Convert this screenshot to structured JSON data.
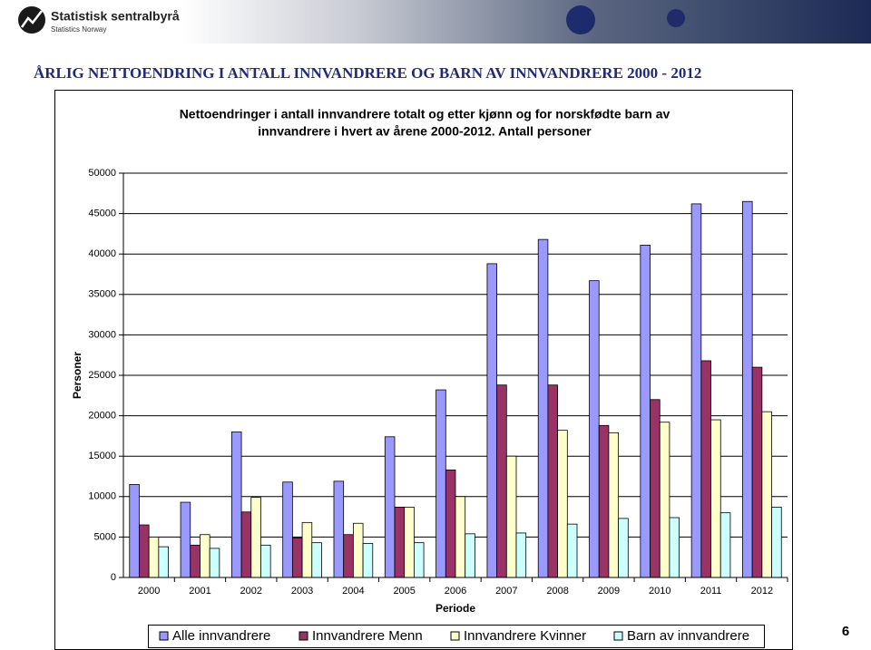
{
  "header": {
    "org_name": "Statistisk sentralbyrå",
    "org_name_en": "Statistics Norway"
  },
  "slide_title": "ÅRLIG NETTOENDRING I ANTALL  INNVANDRERE OG BARN AV INNVANDRERE 2000 - 2012",
  "page_number": "6",
  "chart_data": {
    "type": "bar",
    "title": [
      "Nettoendringer i antall innvandrere totalt og etter kjønn og for norskfødte barn av",
      "innvandrere i hvert av årene  2000-2012. Antall personer"
    ],
    "x_label": "Periode",
    "y_label": "Personer",
    "categories": [
      "2000",
      "2001",
      "2002",
      "2003",
      "2004",
      "2005",
      "2006",
      "2007",
      "2008",
      "2009",
      "2010",
      "2011",
      "2012"
    ],
    "series": [
      {
        "name": "Alle innvandrere",
        "color": "#9999ff",
        "values": [
          11500,
          9300,
          18000,
          11800,
          11900,
          17400,
          23200,
          38800,
          41800,
          36700,
          41100,
          46200,
          46500
        ]
      },
      {
        "name": "Innvandrere Menn",
        "color": "#993366",
        "values": [
          6500,
          4000,
          8100,
          4900,
          5300,
          8700,
          13300,
          23800,
          23800,
          18800,
          22000,
          26800,
          26000
        ]
      },
      {
        "name": "Innvandrere Kvinner",
        "color": "#ffffcc",
        "values": [
          5000,
          5300,
          9900,
          6800,
          6700,
          8700,
          10000,
          15000,
          18200,
          17900,
          19200,
          19500,
          20500
        ]
      },
      {
        "name": "Barn av innvandrere",
        "color": "#ccffff",
        "values": [
          3800,
          3600,
          4000,
          4300,
          4200,
          4300,
          5400,
          5500,
          6600,
          7300,
          7400,
          8000,
          8700
        ]
      }
    ],
    "ylim": [
      0,
      50000
    ],
    "yticks": [
      0,
      5000,
      10000,
      15000,
      20000,
      25000,
      30000,
      35000,
      40000,
      45000,
      50000
    ],
    "grid": true,
    "legend": "bottom"
  }
}
